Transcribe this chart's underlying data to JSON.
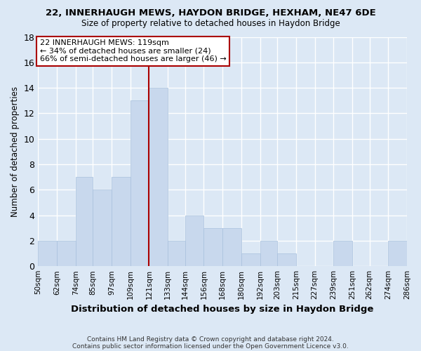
{
  "title": "22, INNERHAUGH MEWS, HAYDON BRIDGE, HEXHAM, NE47 6DE",
  "subtitle": "Size of property relative to detached houses in Haydon Bridge",
  "xlabel": "Distribution of detached houses by size in Haydon Bridge",
  "ylabel": "Number of detached properties",
  "bin_edges": [
    50,
    62,
    74,
    85,
    97,
    109,
    121,
    133,
    144,
    156,
    168,
    180,
    192,
    203,
    215,
    227,
    239,
    251,
    262,
    274,
    286
  ],
  "bin_labels": [
    "50sqm",
    "62sqm",
    "74sqm",
    "85sqm",
    "97sqm",
    "109sqm",
    "121sqm",
    "133sqm",
    "144sqm",
    "156sqm",
    "168sqm",
    "180sqm",
    "192sqm",
    "203sqm",
    "215sqm",
    "227sqm",
    "239sqm",
    "251sqm",
    "262sqm",
    "274sqm",
    "286sqm"
  ],
  "counts": [
    2,
    2,
    7,
    6,
    7,
    13,
    14,
    2,
    4,
    3,
    3,
    1,
    2,
    1,
    0,
    0,
    2,
    0,
    0,
    2
  ],
  "bar_color": "#c8d8ed",
  "bar_edgecolor": "#a8c0dd",
  "bar_linewidth": 0.5,
  "vline_x": 121,
  "vline_color": "#aa0000",
  "annotation_text": "22 INNERHAUGH MEWS: 119sqm\n← 34% of detached houses are smaller (24)\n66% of semi-detached houses are larger (46) →",
  "annotation_box_color": "#ffffff",
  "annotation_box_edgecolor": "#aa0000",
  "ylim": [
    0,
    18
  ],
  "yticks": [
    0,
    2,
    4,
    6,
    8,
    10,
    12,
    14,
    16,
    18
  ],
  "background_color": "#dce8f5",
  "grid_color": "#ffffff",
  "footer_line1": "Contains HM Land Registry data © Crown copyright and database right 2024.",
  "footer_line2": "Contains public sector information licensed under the Open Government Licence v3.0."
}
